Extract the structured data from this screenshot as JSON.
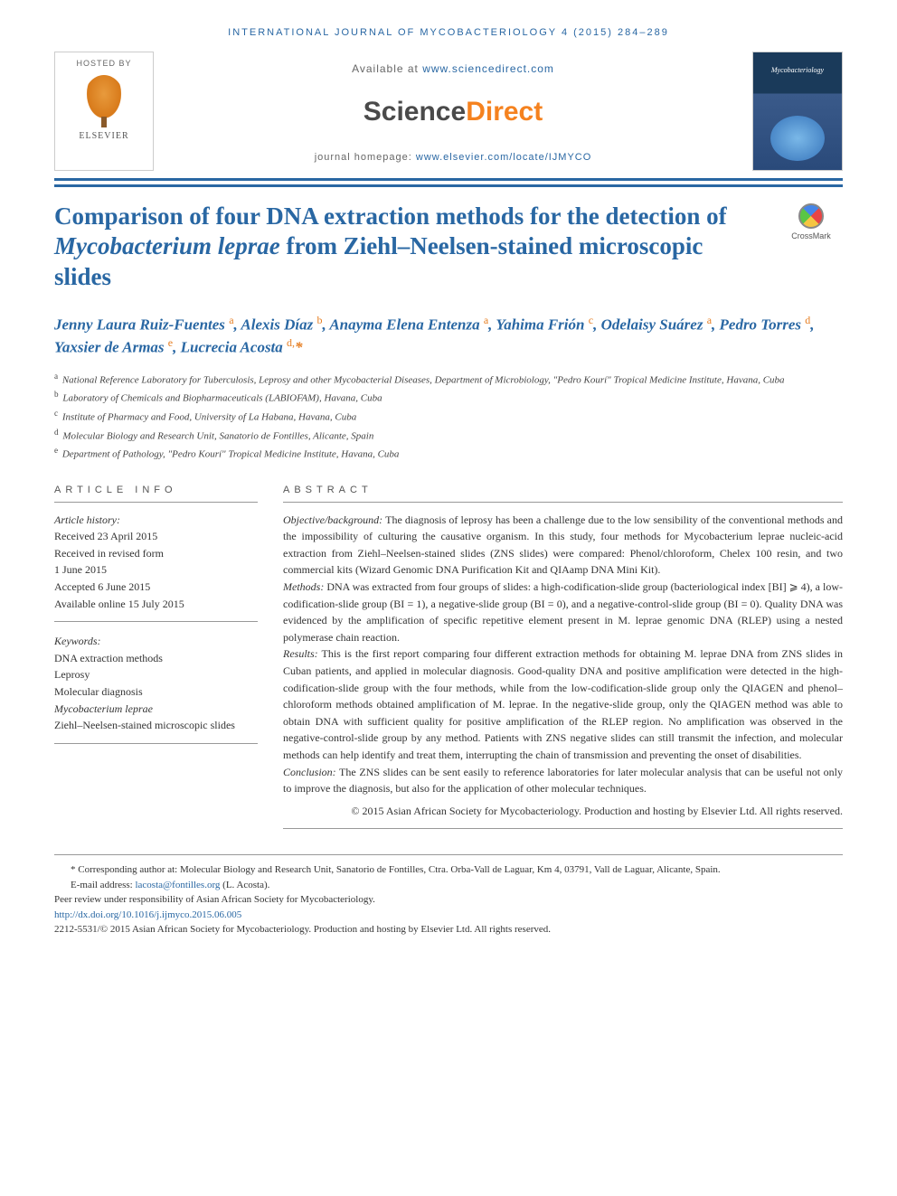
{
  "running_head": "INTERNATIONAL JOURNAL OF MYCOBACTERIOLOGY 4 (2015) 284–289",
  "hosted_by": {
    "label": "HOSTED BY",
    "publisher": "ELSEVIER"
  },
  "sciencedirect": {
    "available_prefix": "Available at ",
    "available_link": "www.sciencedirect.com",
    "logo_left": "Science",
    "logo_right": "Direct",
    "homepage_prefix": "journal homepage: ",
    "homepage_link": "www.elsevier.com/locate/IJMYCO"
  },
  "cover": {
    "title": "Mycobacteriology"
  },
  "crossmark": "CrossMark",
  "title": {
    "line1": "Comparison of four DNA extraction methods for the detection of ",
    "ital": "Mycobacterium leprae",
    "line2": " from Ziehl–Neelsen-stained microscopic slides"
  },
  "authors_html": "Jenny Laura Ruiz-Fuentes <sup>a</sup>, Alexis Díaz <sup>b</sup>, Anayma Elena Entenza <sup>a</sup>, Yahima Frión <sup>c</sup>, Odelaisy Suárez <sup>a</sup>, Pedro Torres <sup>d</sup>, Yaxsier de Armas <sup>e</sup>, Lucrecia Acosta <sup>d,</sup><span class='corr'>*</span>",
  "affiliations": [
    {
      "tag": "a",
      "text": "National Reference Laboratory for Tuberculosis, Leprosy and other Mycobacterial Diseases, Department of Microbiology, \"Pedro Kourí\" Tropical Medicine Institute, Havana, Cuba"
    },
    {
      "tag": "b",
      "text": "Laboratory of Chemicals and Biopharmaceuticals (LABIOFAM), Havana, Cuba"
    },
    {
      "tag": "c",
      "text": "Institute of Pharmacy and Food, University of La Habana, Havana, Cuba"
    },
    {
      "tag": "d",
      "text": "Molecular Biology and Research Unit, Sanatorio de Fontilles, Alicante, Spain"
    },
    {
      "tag": "e",
      "text": "Department of Pathology, \"Pedro Kourí\" Tropical Medicine Institute, Havana, Cuba"
    }
  ],
  "labels": {
    "article_info": "ARTICLE INFO",
    "abstract": "ABSTRACT"
  },
  "history": {
    "heading": "Article history:",
    "lines": [
      "Received 23 April 2015",
      "Received in revised form",
      "1 June 2015",
      "Accepted 6 June 2015",
      "Available online 15 July 2015"
    ]
  },
  "keywords": {
    "heading": "Keywords:",
    "items": [
      {
        "t": "DNA extraction methods"
      },
      {
        "t": "Leprosy"
      },
      {
        "t": "Molecular diagnosis"
      },
      {
        "t": "Mycobacterium leprae",
        "ital": true
      },
      {
        "t": "Ziehl–Neelsen-stained microscopic slides"
      }
    ]
  },
  "abstract": {
    "objective_label": "Objective/background:",
    "objective": " The diagnosis of leprosy has been a challenge due to the low sensibility of the conventional methods and the impossibility of culturing the causative organism. In this study, four methods for Mycobacterium leprae nucleic-acid extraction from Ziehl–Neelsen-stained slides (ZNS slides) were compared: Phenol/chloroform, Chelex 100 resin, and two commercial kits (Wizard Genomic DNA Purification Kit and QIAamp DNA Mini Kit).",
    "methods_label": "Methods:",
    "methods": " DNA was extracted from four groups of slides: a high-codification-slide group (bacteriological index [BI] ⩾ 4), a low-codification-slide group (BI = 1), a negative-slide group (BI = 0), and a negative-control-slide group (BI = 0). Quality DNA was evidenced by the amplification of specific repetitive element present in M. leprae genomic DNA (RLEP) using a nested polymerase chain reaction.",
    "results_label": "Results:",
    "results": " This is the first report comparing four different extraction methods for obtaining M. leprae DNA from ZNS slides in Cuban patients, and applied in molecular diagnosis. Good-quality DNA and positive amplification were detected in the high-codification-slide group with the four methods, while from the low-codification-slide group only the QIAGEN and phenol–chloroform methods obtained amplification of M. leprae. In the negative-slide group, only the QIAGEN method was able to obtain DNA with sufficient quality for positive amplification of the RLEP region. No amplification was observed in the negative-control-slide group by any method. Patients with ZNS negative slides can still transmit the infection, and molecular methods can help identify and treat them, interrupting the chain of transmission and preventing the onset of disabilities.",
    "conclusion_label": "Conclusion:",
    "conclusion": " The ZNS slides can be sent easily to reference laboratories for later molecular analysis that can be useful not only to improve the diagnosis, but also for the application of other molecular techniques.",
    "copyright": "© 2015 Asian African Society for Mycobacteriology. Production and hosting by Elsevier Ltd. All rights reserved."
  },
  "footnotes": {
    "corr_label": "* Corresponding author at: ",
    "corr_text": "Molecular Biology and Research Unit, Sanatorio de Fontilles, Ctra. Orba-Vall de Laguar, Km 4, 03791, Vall de Laguar, Alicante, Spain.",
    "email_label": "E-mail address: ",
    "email": "lacosta@fontilles.org",
    "email_suffix": " (L. Acosta).",
    "peer": "Peer review under responsibility of Asian African Society for Mycobacteriology.",
    "doi": "http://dx.doi.org/10.1016/j.ijmyco.2015.06.005",
    "issn": "2212-5531/© 2015 Asian African Society for Mycobacteriology. Production and hosting by Elsevier Ltd. All rights reserved."
  },
  "colors": {
    "brand_blue": "#2967a3",
    "author_blue": "#2967a3",
    "sup_orange": "#e67e22",
    "sd_orange": "#f5821f",
    "text": "#333333",
    "rule": "#999999"
  }
}
